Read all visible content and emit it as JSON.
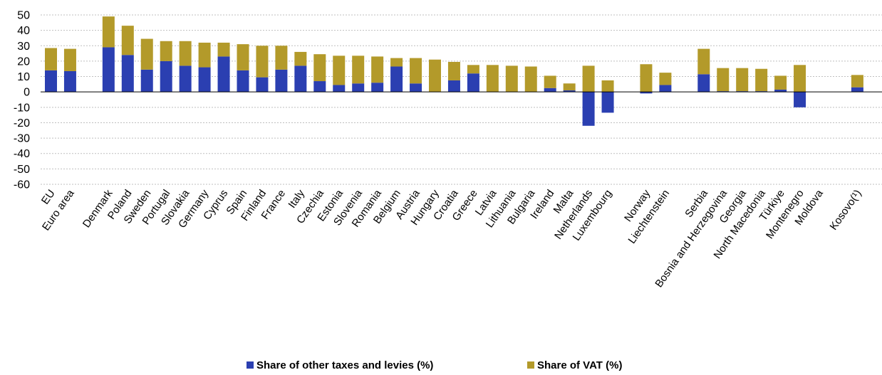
{
  "chart_data": {
    "type": "bar",
    "stacked": true,
    "title": "",
    "xlabel": "",
    "ylabel": "",
    "ylim": [
      -60,
      50
    ],
    "yticks": [
      50,
      40,
      30,
      20,
      10,
      0,
      -10,
      -20,
      -30,
      -40,
      -50,
      -60
    ],
    "grid": true,
    "legend_position": "bottom",
    "colors": {
      "other": "#2b3fb1",
      "vat": "#b39a2a"
    },
    "categories": [
      "EU",
      "Euro area",
      "",
      "Denmark",
      "Poland",
      "Sweden",
      "Portugal",
      "Slovakia",
      "Germany",
      "Cyprus",
      "Spain",
      "Finland",
      "France",
      "Italy",
      "Czechia",
      "Estonia",
      "Slovenia",
      "Romania",
      "Belgium",
      "Austria",
      "Hungary",
      "Croatia",
      "Greece",
      "Latvia",
      "Lithuania",
      "Bulgaria",
      "Ireland",
      "Malta",
      "Netherlands",
      "Luxembourg",
      "",
      "Norway",
      "Liechtenstein",
      "",
      "Serbia",
      "Bosnia and Herzegovina",
      "Georgia",
      "North Macedonia",
      "Türkiye",
      "Montenegro",
      "Moldova",
      "",
      "Kosovo(¹)"
    ],
    "series": [
      {
        "name": "Share of other taxes and levies (%)",
        "values": [
          14,
          13.5,
          null,
          29,
          24,
          14.5,
          20,
          17,
          16,
          23,
          14,
          9.5,
          14.5,
          17,
          7,
          4.5,
          5.5,
          6,
          16.5,
          5.5,
          0,
          7.5,
          12,
          0,
          0,
          0,
          2.5,
          1,
          -22,
          -13.5,
          null,
          -1,
          4.5,
          null,
          11.5,
          0.5,
          0.5,
          0.5,
          1.5,
          -10,
          0,
          null,
          3
        ]
      },
      {
        "name": "Share of VAT (%)",
        "values": [
          14.5,
          14.5,
          null,
          20,
          19,
          20,
          13,
          16,
          16,
          9,
          17,
          20.5,
          15.5,
          9,
          17.5,
          19,
          18,
          17,
          5.5,
          16.5,
          21,
          12,
          5.5,
          17.5,
          17,
          16.5,
          8,
          4.5,
          17,
          7.5,
          null,
          18,
          8,
          null,
          16.5,
          15,
          15,
          14.5,
          9,
          17.5,
          0,
          null,
          8
        ]
      }
    ]
  }
}
